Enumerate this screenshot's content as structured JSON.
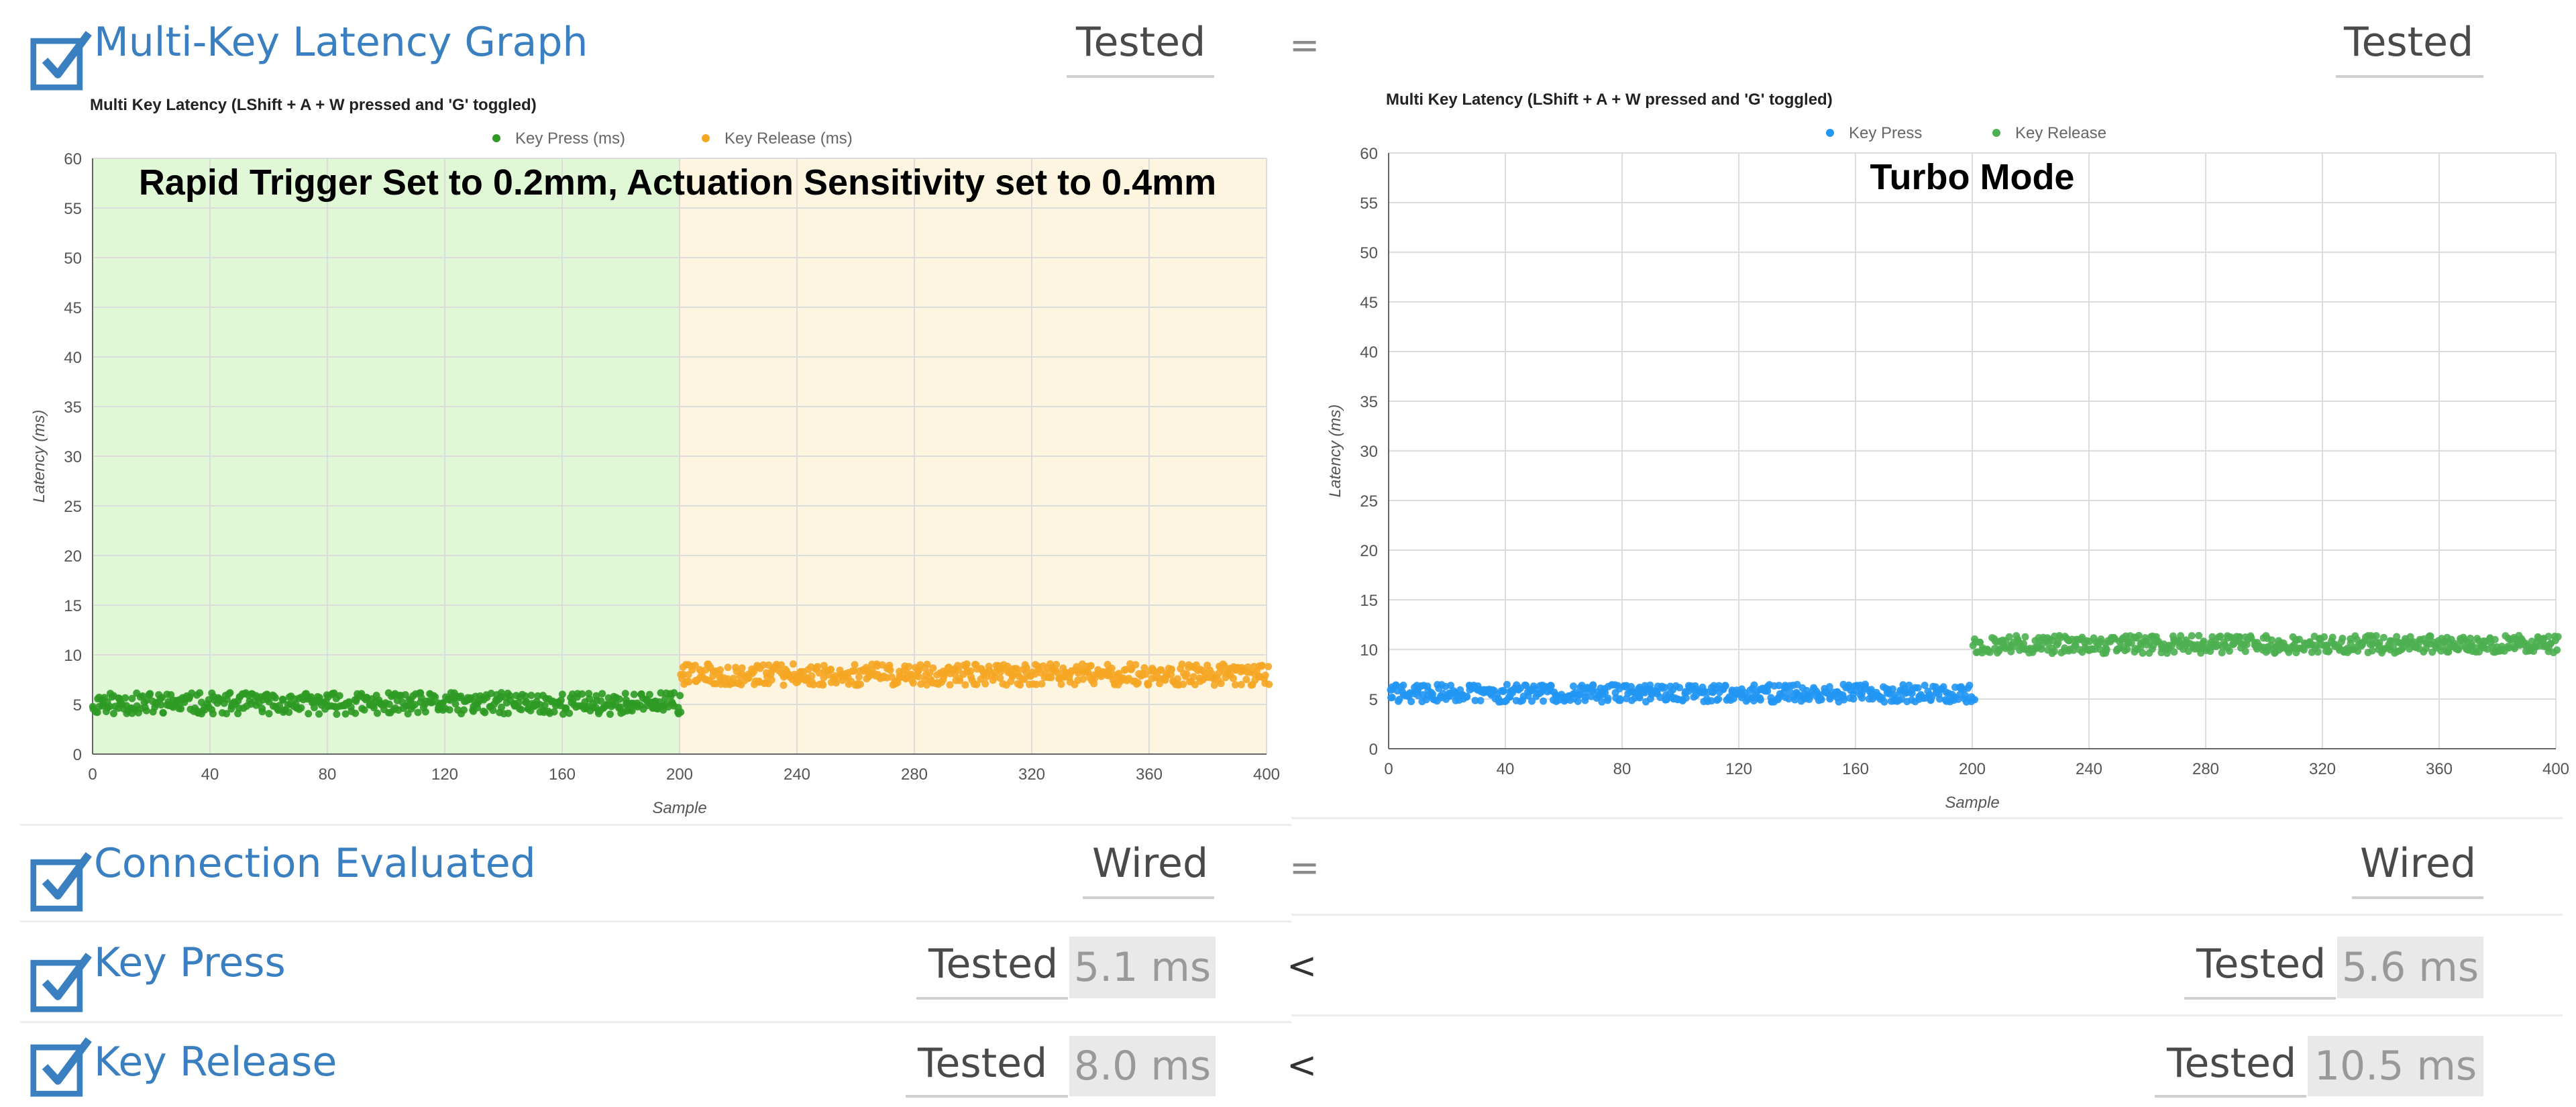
{
  "colors": {
    "label_blue": "#3a7fc0",
    "press_green": "#2e9a24",
    "release_orange": "#f5a623",
    "turbo_blue": "#2196f3",
    "turbo_green": "#4caf50",
    "band_green": "#e0f8d6",
    "band_yellow": "#fdf5df"
  },
  "icons": {
    "checkbox": "checkbox-checked-icon"
  },
  "rows": {
    "graph": {
      "label": "Multi-Key Latency Graph",
      "left_status": "Tested",
      "compare": "=",
      "right_status": "Tested"
    },
    "connection": {
      "label": "Connection Evaluated",
      "left_status": "Wired",
      "compare": "=",
      "right_status": "Wired"
    },
    "key_press": {
      "label": "Key Press",
      "left_status": "Tested",
      "left_value": "5.1 ms",
      "compare": "<",
      "right_status": "Tested",
      "right_value": "5.6 ms"
    },
    "key_release": {
      "label": "Key Release",
      "left_status": "Tested",
      "left_value": "8.0 ms",
      "compare": "<",
      "right_status": "Tested",
      "right_value": "10.5 ms"
    }
  },
  "chart_data": [
    {
      "type": "scatter",
      "title": "Multi Key Latency (LShift + A + W pressed and 'G' toggled)",
      "annotation": "Rapid Trigger Set to 0.2mm, Actuation Sensitivity set to 0.4mm",
      "xlabel": "Sample",
      "ylabel": "Latency (ms)",
      "xlim": [
        0,
        400
      ],
      "ylim": [
        0,
        60
      ],
      "xticks": [
        "0",
        "40",
        "80",
        "120",
        "160",
        "200",
        "240",
        "280",
        "320",
        "360",
        "400"
      ],
      "yticks": [
        "0",
        "5",
        "10",
        "15",
        "20",
        "25",
        "30",
        "35",
        "40",
        "45",
        "50",
        "55",
        "60"
      ],
      "grid": true,
      "legend_position": "top",
      "background_bands": [
        {
          "x": [
            0,
            200
          ],
          "color": "#e0f8d6"
        },
        {
          "x": [
            200,
            400
          ],
          "color": "#fdf5df"
        }
      ],
      "series": [
        {
          "name": "Key Press (ms)",
          "color": "#2e9a24",
          "x_range": [
            0,
            200
          ],
          "mean": 5.1,
          "spread": 0.6
        },
        {
          "name": "Key Release (ms)",
          "color": "#f5a623",
          "x_range": [
            200,
            400
          ],
          "mean": 8.0,
          "spread": 0.6
        }
      ]
    },
    {
      "type": "scatter",
      "title": "Multi Key Latency (LShift + A + W pressed and 'G' toggled)",
      "annotation": "Turbo Mode",
      "xlabel": "Sample",
      "ylabel": "Latency (ms)",
      "xlim": [
        0,
        400
      ],
      "ylim": [
        0,
        60
      ],
      "xticks": [
        "0",
        "40",
        "80",
        "120",
        "160",
        "200",
        "240",
        "280",
        "320",
        "360",
        "400"
      ],
      "yticks": [
        "0",
        "5",
        "10",
        "15",
        "20",
        "25",
        "30",
        "35",
        "40",
        "45",
        "50",
        "55",
        "60"
      ],
      "grid": true,
      "legend_position": "top",
      "series": [
        {
          "name": "Key Press",
          "color": "#2196f3",
          "x_range": [
            0,
            200
          ],
          "mean": 5.6,
          "spread": 0.5
        },
        {
          "name": "Key Release",
          "color": "#4caf50",
          "x_range": [
            200,
            400
          ],
          "mean": 10.5,
          "spread": 0.5
        }
      ]
    }
  ]
}
